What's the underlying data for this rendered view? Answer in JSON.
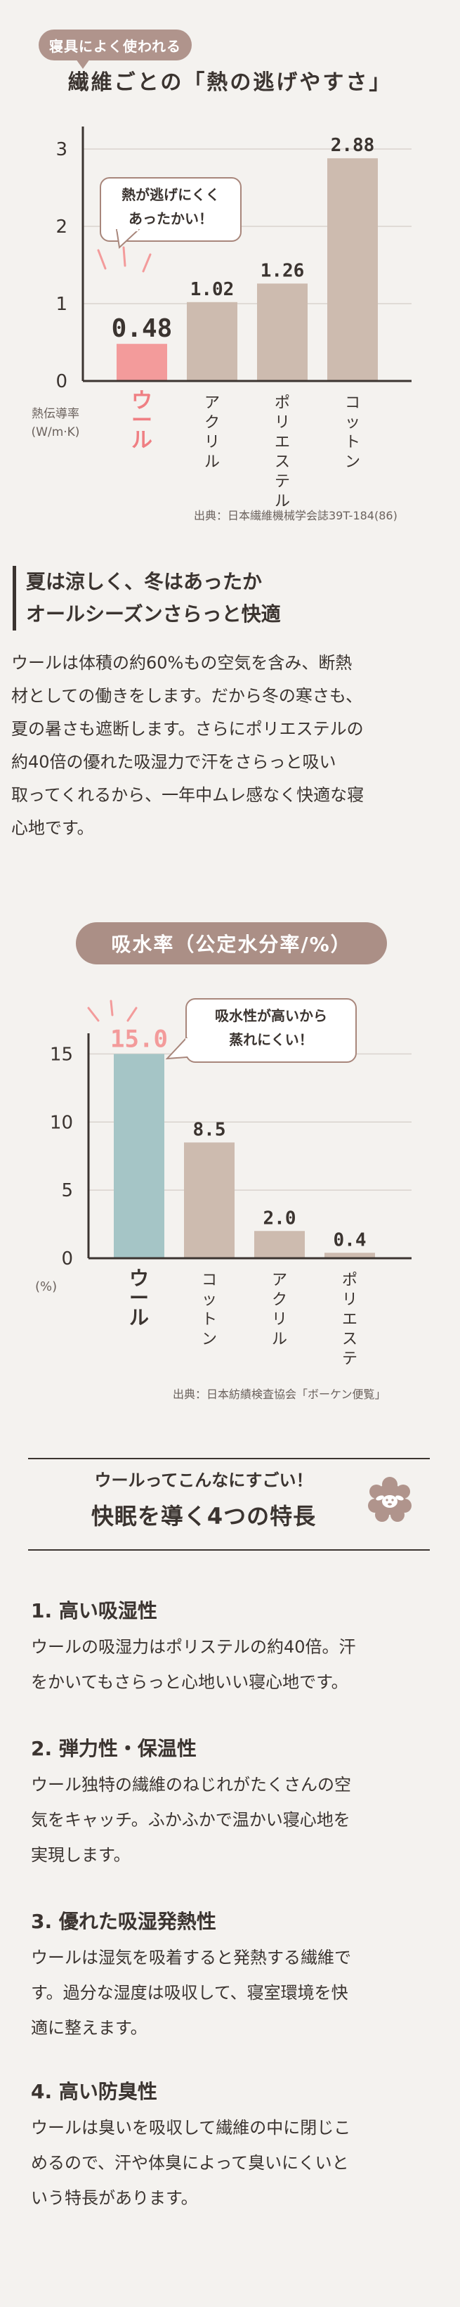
{
  "chart1": {
    "badge": "寝具によく使われる",
    "title": "繊維ごとの「熱の逃げやすさ」",
    "bubble_line1": "熱が逃げにくく",
    "bubble_line2": "あったかい！",
    "ylabel_line1": "熱伝導率",
    "ylabel_line2": "(W/m·K)",
    "source": "出典：日本繊維機械学会誌39T-184(86)"
  },
  "text_block": {
    "heading_line1": "夏は涼しく、冬はあったか",
    "heading_line2": "オールシーズンさらっと快適",
    "paragraph_lines": [
      "ウールは体積の約60%もの空気を含み、断熱",
      "材としての働きをします。だから冬の寒さも、",
      "夏の暑さも遮断します。さらにポリエステルの",
      "約40倍の優れた吸湿力で汗をさらっと吸い",
      "取ってくれるから、一年中ムレ感なく快適な寝",
      "心地です。"
    ]
  },
  "chart2": {
    "title": "吸水率（公定水分率/%）",
    "bubble_line1": "吸水性が高いから",
    "bubble_line2": "蒸れにくい！",
    "ylabel": "(%)",
    "source": "出典：日本紡績検査協会「ボーケン便覧」"
  },
  "features": {
    "subtitle": "ウールってこんなにすごい！",
    "title": "快眠を導く4つの特長",
    "items": [
      {
        "heading": "1. 高い吸湿性",
        "lines": [
          "ウールの吸湿力はポリステルの約40倍。汗",
          "をかいてもさらっと心地いい寝心地です。"
        ]
      },
      {
        "heading": "2. 弾力性・保温性",
        "lines": [
          "ウール独特の繊維のねじれがたくさんの空",
          "気をキャッチ。ふかふかで温かい寝心地を",
          "実現します。"
        ]
      },
      {
        "heading": "3. 優れた吸湿発熱性",
        "lines": [
          "ウールは湿気を吸着すると発熱する繊維で",
          "す。過分な湿度は吸収して、寝室環境を快",
          "適に整えます。"
        ]
      },
      {
        "heading": "4. 高い防臭性",
        "lines": [
          "ウールは臭いを吸収して繊維の中に閉じこ",
          "めるので、汗や体臭によって臭いにくいと",
          "いう特長があります。"
        ]
      }
    ]
  },
  "colors": {
    "highlight": "#f39b9b",
    "highlight_text": "#ef7f83",
    "bar": "#cdbbaf",
    "wool_bar2": "#a5c5c6",
    "axis": "#3b3430",
    "grid": "#d9d3ce"
  },
  "chart_data": [
    {
      "type": "bar",
      "categories": [
        "ウール",
        "アクリル",
        "ポリエステル",
        "コットン"
      ],
      "values": [
        0.48,
        1.02,
        1.26,
        2.88
      ],
      "value_labels": [
        "0.48",
        "1.02",
        "1.26",
        "2.88"
      ],
      "ylim": [
        0,
        3.2
      ],
      "yticks": [
        0,
        1,
        2,
        3
      ],
      "ytick_labels": [
        "0",
        "1",
        "2",
        "3"
      ],
      "grid": true
    },
    {
      "type": "bar",
      "categories": [
        "ウール",
        "コットン",
        "アクリル",
        "ポリエステル"
      ],
      "values": [
        15.0,
        8.5,
        2.0,
        0.4
      ],
      "value_labels": [
        "15.0",
        "8.5",
        "2.0",
        "0.4"
      ],
      "ylim": [
        0,
        16
      ],
      "yticks": [
        0,
        5,
        10,
        15
      ],
      "ytick_labels": [
        "0",
        "5",
        "10",
        "15"
      ],
      "grid": true
    }
  ]
}
